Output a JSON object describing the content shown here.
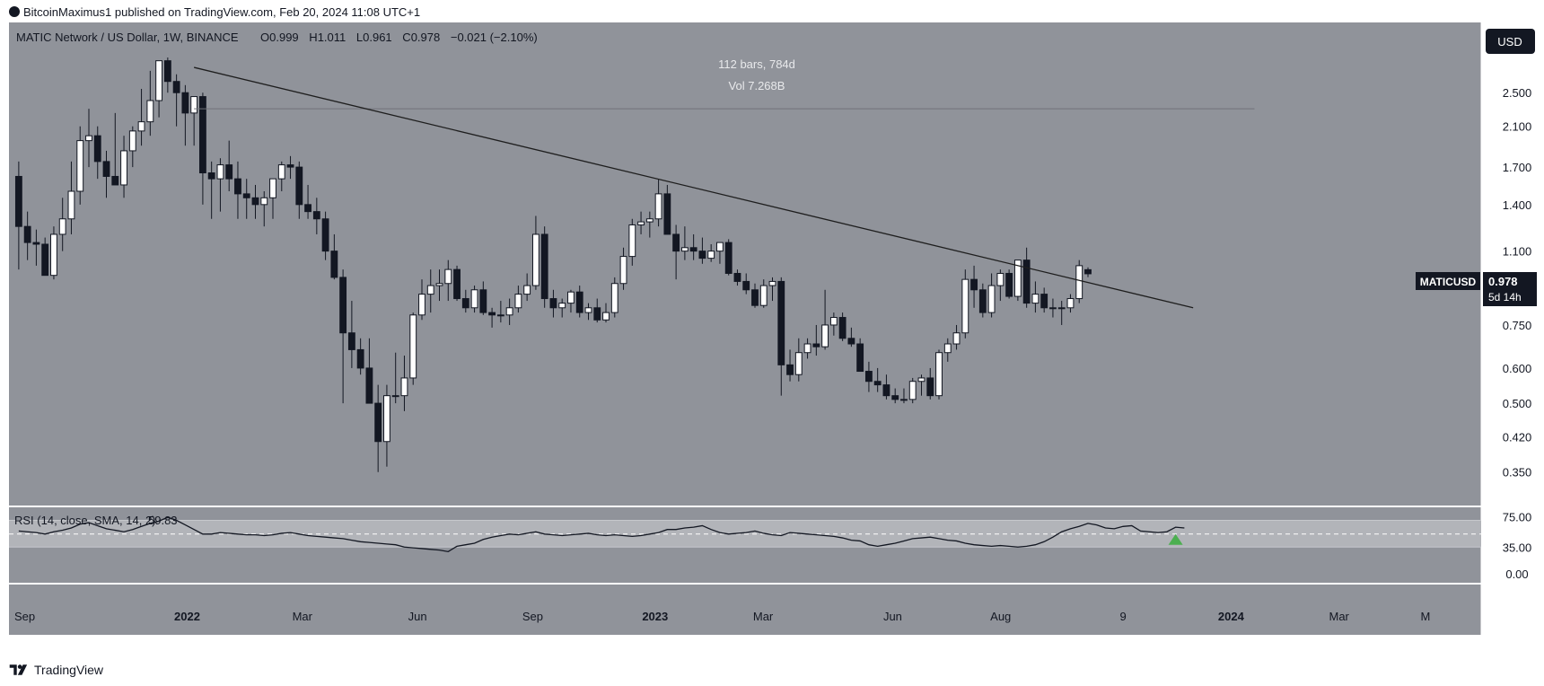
{
  "header": {
    "published_line": "BitcoinMaximus1 published on TradingView.com, Feb 20, 2024 11:08 UTC+1"
  },
  "footer": {
    "brand": "TradingView"
  },
  "colors": {
    "background": "#90939a",
    "rsi_band": "#b2b4b9",
    "candle_up": "#ffffff",
    "candle_down": "#131722",
    "trendline": "#1e1e1e",
    "rsi_line": "#131722",
    "signal_arrow": "#4caf50",
    "price_label_bg": "#131722"
  },
  "chart_data": [
    {
      "type": "candlestick",
      "symbol_line": "MATIC Network / US Dollar, 1W, BINANCE",
      "ohlc_header": {
        "o_label": "O",
        "o": "0.999",
        "h_label": "H",
        "h": "1.011",
        "l_label": "L",
        "l": "0.961",
        "c_label": "C",
        "c": "0.978",
        "change": "−0.021 (−2.10%)"
      },
      "currency_button": "USD",
      "measure_info": [
        "112 bars, 784d",
        "Vol 7.268B"
      ],
      "price_label": {
        "symbol": "MATICUSD",
        "price": "0.978",
        "countdown": "5d 14h"
      },
      "y_scale": "log",
      "y_ticks": [
        "2.500",
        "2.100",
        "1.700",
        "1.400",
        "1.100",
        "0.750",
        "0.600",
        "0.500",
        "0.420",
        "0.350"
      ],
      "x_ticks": [
        "Sep",
        "2022",
        "Mar",
        "Jun",
        "Sep",
        "2023",
        "Mar",
        "Jun",
        "Aug",
        "9",
        "2024",
        "Mar",
        "M"
      ],
      "range_line_price": 2.3,
      "trendline": [
        {
          "week": 20,
          "price": 2.85
        },
        {
          "week": 134,
          "price": 0.82
        }
      ],
      "candles_weekly_ohlc": [
        [
          1.62,
          1.75,
          1.0,
          1.25
        ],
        [
          1.25,
          1.35,
          1.05,
          1.15
        ],
        [
          1.15,
          1.23,
          1.02,
          1.14
        ],
        [
          1.14,
          1.18,
          1.0,
          0.97
        ],
        [
          0.97,
          1.25,
          0.95,
          1.2
        ],
        [
          1.2,
          1.45,
          1.1,
          1.3
        ],
        [
          1.3,
          1.75,
          1.2,
          1.5
        ],
        [
          1.5,
          2.1,
          1.4,
          1.95
        ],
        [
          1.95,
          2.3,
          1.7,
          2.0
        ],
        [
          2.0,
          2.1,
          1.6,
          1.75
        ],
        [
          1.75,
          1.85,
          1.45,
          1.62
        ],
        [
          1.62,
          2.25,
          1.55,
          1.55
        ],
        [
          1.55,
          2.0,
          1.45,
          1.85
        ],
        [
          1.85,
          2.1,
          1.7,
          2.05
        ],
        [
          2.05,
          2.55,
          1.9,
          2.15
        ],
        [
          2.15,
          2.8,
          2.0,
          2.4
        ],
        [
          2.4,
          2.9,
          2.2,
          2.95
        ],
        [
          2.95,
          3.0,
          2.5,
          2.65
        ],
        [
          2.65,
          2.75,
          2.1,
          2.5
        ],
        [
          2.5,
          2.6,
          1.9,
          2.25
        ],
        [
          2.25,
          2.45,
          1.9,
          2.45
        ],
        [
          2.45,
          2.5,
          1.4,
          1.65
        ],
        [
          1.65,
          1.75,
          1.3,
          1.6
        ],
        [
          1.6,
          1.78,
          1.35,
          1.72
        ],
        [
          1.72,
          1.95,
          1.5,
          1.6
        ],
        [
          1.6,
          1.75,
          1.3,
          1.48
        ],
        [
          1.48,
          1.6,
          1.3,
          1.45
        ],
        [
          1.45,
          1.55,
          1.3,
          1.4
        ],
        [
          1.4,
          1.5,
          1.25,
          1.45
        ],
        [
          1.45,
          1.55,
          1.3,
          1.6
        ],
        [
          1.6,
          1.75,
          1.5,
          1.72
        ],
        [
          1.72,
          1.8,
          1.6,
          1.7
        ],
        [
          1.7,
          1.75,
          1.3,
          1.4
        ],
        [
          1.4,
          1.55,
          1.3,
          1.35
        ],
        [
          1.35,
          1.45,
          1.2,
          1.3
        ],
        [
          1.3,
          1.35,
          1.05,
          1.1
        ],
        [
          1.1,
          1.2,
          0.95,
          0.96
        ],
        [
          0.96,
          1.0,
          0.5,
          0.72
        ],
        [
          0.72,
          0.85,
          0.6,
          0.66
        ],
        [
          0.66,
          0.7,
          0.58,
          0.6
        ],
        [
          0.6,
          0.7,
          0.5,
          0.5
        ],
        [
          0.5,
          0.55,
          0.35,
          0.41
        ],
        [
          0.41,
          0.55,
          0.36,
          0.52
        ],
        [
          0.52,
          0.65,
          0.5,
          0.52
        ],
        [
          0.52,
          0.64,
          0.48,
          0.57
        ],
        [
          0.57,
          0.8,
          0.55,
          0.79
        ],
        [
          0.79,
          0.95,
          0.77,
          0.88
        ],
        [
          0.88,
          1.0,
          0.8,
          0.92
        ],
        [
          0.92,
          1.0,
          0.85,
          0.93
        ],
        [
          0.93,
          1.05,
          0.85,
          1.0
        ],
        [
          1.0,
          1.02,
          0.85,
          0.86
        ],
        [
          0.86,
          0.9,
          0.8,
          0.82
        ],
        [
          0.82,
          0.92,
          0.8,
          0.9
        ],
        [
          0.9,
          0.94,
          0.79,
          0.8
        ],
        [
          0.8,
          0.82,
          0.74,
          0.79
        ],
        [
          0.79,
          0.85,
          0.76,
          0.79
        ],
        [
          0.79,
          0.86,
          0.75,
          0.82
        ],
        [
          0.82,
          0.92,
          0.8,
          0.88
        ],
        [
          0.88,
          0.98,
          0.85,
          0.92
        ],
        [
          0.92,
          1.32,
          0.9,
          1.2
        ],
        [
          1.2,
          1.25,
          0.82,
          0.86
        ],
        [
          0.86,
          0.9,
          0.78,
          0.82
        ],
        [
          0.82,
          0.86,
          0.78,
          0.84
        ],
        [
          0.84,
          0.9,
          0.8,
          0.89
        ],
        [
          0.89,
          0.92,
          0.78,
          0.8
        ],
        [
          0.8,
          0.84,
          0.77,
          0.82
        ],
        [
          0.82,
          0.86,
          0.76,
          0.77
        ],
        [
          0.77,
          0.84,
          0.76,
          0.8
        ],
        [
          0.8,
          0.96,
          0.78,
          0.93
        ],
        [
          0.93,
          1.12,
          0.9,
          1.07
        ],
        [
          1.07,
          1.3,
          1.02,
          1.26
        ],
        [
          1.26,
          1.35,
          1.2,
          1.28
        ],
        [
          1.28,
          1.35,
          1.18,
          1.3
        ],
        [
          1.3,
          1.6,
          1.25,
          1.48
        ],
        [
          1.48,
          1.55,
          1.2,
          1.2
        ],
        [
          1.2,
          1.26,
          0.95,
          1.1
        ],
        [
          1.1,
          1.25,
          1.05,
          1.12
        ],
        [
          1.12,
          1.2,
          1.05,
          1.1
        ],
        [
          1.1,
          1.18,
          1.03,
          1.06
        ],
        [
          1.06,
          1.14,
          1.04,
          1.1
        ],
        [
          1.1,
          1.15,
          1.03,
          1.15
        ],
        [
          1.15,
          1.17,
          0.97,
          0.98
        ],
        [
          0.98,
          1.0,
          0.92,
          0.94
        ],
        [
          0.94,
          0.98,
          0.88,
          0.9
        ],
        [
          0.9,
          0.93,
          0.82,
          0.83
        ],
        [
          0.83,
          0.95,
          0.82,
          0.92
        ],
        [
          0.92,
          0.96,
          0.85,
          0.94
        ],
        [
          0.94,
          0.96,
          0.52,
          0.61
        ],
        [
          0.61,
          0.66,
          0.56,
          0.58
        ],
        [
          0.58,
          0.7,
          0.56,
          0.65
        ],
        [
          0.65,
          0.7,
          0.63,
          0.68
        ],
        [
          0.68,
          0.75,
          0.64,
          0.67
        ],
        [
          0.67,
          0.9,
          0.66,
          0.75
        ],
        [
          0.75,
          0.8,
          0.71,
          0.78
        ],
        [
          0.78,
          0.8,
          0.69,
          0.7
        ],
        [
          0.7,
          0.74,
          0.67,
          0.68
        ],
        [
          0.68,
          0.7,
          0.6,
          0.59
        ],
        [
          0.59,
          0.62,
          0.53,
          0.56
        ],
        [
          0.56,
          0.6,
          0.53,
          0.55
        ],
        [
          0.55,
          0.58,
          0.51,
          0.52
        ],
        [
          0.52,
          0.54,
          0.5,
          0.51
        ],
        [
          0.51,
          0.54,
          0.5,
          0.51
        ],
        [
          0.51,
          0.57,
          0.5,
          0.56
        ],
        [
          0.56,
          0.58,
          0.52,
          0.57
        ],
        [
          0.57,
          0.6,
          0.51,
          0.52
        ],
        [
          0.52,
          0.66,
          0.51,
          0.65
        ],
        [
          0.65,
          0.7,
          0.62,
          0.68
        ],
        [
          0.68,
          0.75,
          0.66,
          0.72
        ],
        [
          0.72,
          1.0,
          0.7,
          0.95
        ],
        [
          0.95,
          1.02,
          0.82,
          0.9
        ],
        [
          0.9,
          0.93,
          0.78,
          0.8
        ],
        [
          0.8,
          0.98,
          0.78,
          0.92
        ],
        [
          0.92,
          1.0,
          0.85,
          0.98
        ],
        [
          0.98,
          1.0,
          0.86,
          0.87
        ],
        [
          0.87,
          1.02,
          0.85,
          1.05
        ],
        [
          1.05,
          1.12,
          0.82,
          0.84
        ],
        [
          0.84,
          0.94,
          0.8,
          0.88
        ],
        [
          0.88,
          0.91,
          0.8,
          0.82
        ],
        [
          0.82,
          0.86,
          0.78,
          0.82
        ],
        [
          0.82,
          0.85,
          0.75,
          0.82
        ],
        [
          0.82,
          0.88,
          0.8,
          0.86
        ],
        [
          0.86,
          1.05,
          0.84,
          1.02
        ],
        [
          0.999,
          1.011,
          0.961,
          0.978
        ]
      ]
    },
    {
      "type": "line",
      "indicator_label": "RSI (14, close, SMA, 14, 2)",
      "value_label": "59.83",
      "y_ticks": [
        "75.00",
        "35.00",
        "0.00"
      ],
      "ylim": [
        0,
        80
      ],
      "band": [
        35,
        70
      ],
      "mid_line": 52,
      "rsi_values": [
        56,
        55,
        54,
        52,
        55,
        57,
        60,
        65,
        67,
        63,
        59,
        57,
        55,
        58,
        62,
        66,
        69,
        74,
        70,
        64,
        58,
        52,
        52,
        54,
        53,
        52,
        51,
        51,
        50,
        51,
        53,
        54,
        52,
        50,
        49,
        48,
        47,
        46,
        44,
        42,
        41,
        40,
        39,
        38,
        35,
        34,
        33,
        32,
        31,
        29,
        36,
        38,
        40,
        45,
        48,
        50,
        52,
        51,
        53,
        55,
        52,
        51,
        50,
        51,
        52,
        53,
        51,
        50,
        51,
        50,
        49,
        50,
        52,
        54,
        58,
        58,
        60,
        61,
        63,
        58,
        54,
        52,
        53,
        54,
        56,
        53,
        51,
        50,
        54,
        53,
        52,
        51,
        50,
        49,
        47,
        44,
        43,
        38,
        36,
        38,
        40,
        43,
        46,
        47,
        48,
        46,
        44,
        43,
        40,
        38,
        37,
        36,
        37,
        36,
        35,
        36,
        38,
        42,
        48,
        55,
        59,
        62,
        66,
        64,
        60,
        59,
        62,
        63,
        56,
        55,
        54,
        55,
        61,
        60
      ],
      "arrow_at_week": 132
    }
  ]
}
